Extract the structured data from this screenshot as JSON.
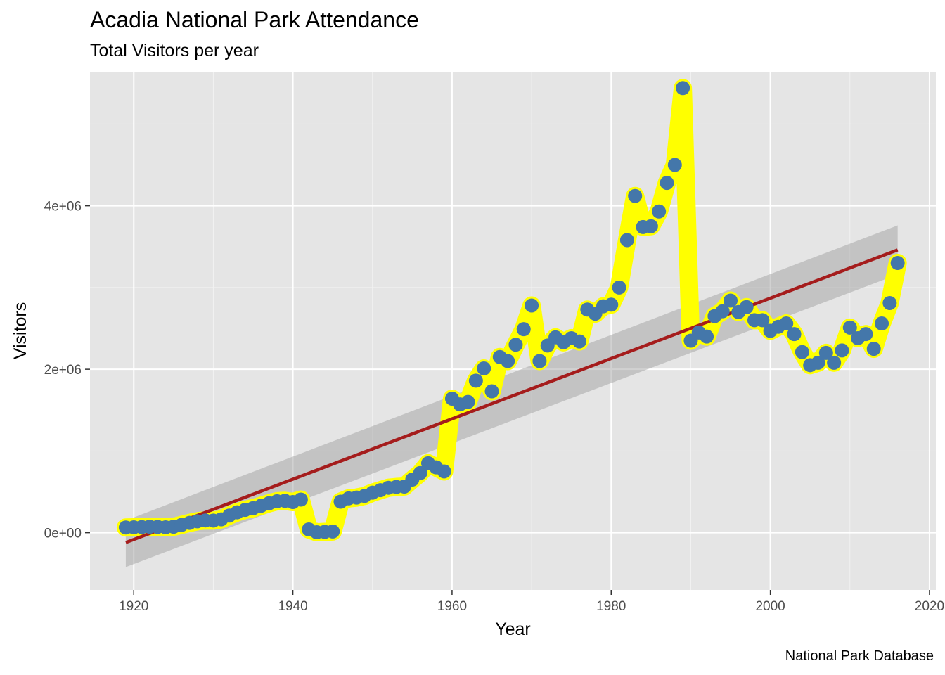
{
  "chart_data": {
    "type": "line",
    "title": "Acadia National Park Attendance",
    "subtitle": "Total Visitors per year",
    "caption": "National Park Database",
    "xlabel": "Year",
    "ylabel": "Visitors",
    "xlim": [
      1914.5,
      2020.8
    ],
    "ylim": [
      -700000,
      5640000
    ],
    "x_ticks": [
      1920,
      1940,
      1960,
      1980,
      2000,
      2020
    ],
    "x_tick_labels": [
      "1920",
      "1940",
      "1960",
      "1980",
      "2000",
      "2020"
    ],
    "y_ticks": [
      0,
      2000000,
      4000000
    ],
    "y_tick_labels": [
      "0e+00",
      "2e+06",
      "4e+06"
    ],
    "grid": true,
    "background": "#e5e5e5",
    "colors": {
      "points": "#4477aa",
      "line": "#ffff00",
      "trend": "#a51c1c",
      "ribbon": "#999999"
    },
    "series": [
      {
        "x": [
          1919,
          1920,
          1921,
          1922,
          1923,
          1924,
          1925,
          1926,
          1927,
          1928,
          1929,
          1930,
          1931,
          1932,
          1933,
          1934,
          1935,
          1936,
          1937,
          1938,
          1939,
          1940,
          1941,
          1942,
          1943,
          1944,
          1945,
          1946,
          1947,
          1948,
          1949,
          1950,
          1951,
          1952,
          1953,
          1954,
          1955,
          1956,
          1957,
          1958,
          1959,
          1960,
          1961,
          1962,
          1963,
          1964,
          1965,
          1966,
          1967,
          1968,
          1969,
          1970,
          1971,
          1972,
          1973,
          1974,
          1975,
          1976,
          1977,
          1978,
          1979,
          1980,
          1981,
          1982,
          1983,
          1984,
          1985,
          1986,
          1987,
          1988,
          1989,
          1990,
          1991,
          1992,
          1993,
          1994,
          1995,
          1996,
          1997,
          1998,
          1999,
          2000,
          2001,
          2002,
          2003,
          2004,
          2005,
          2006,
          2007,
          2008,
          2009,
          2010,
          2011,
          2012,
          2013,
          2014,
          2015,
          2016
        ],
        "y": [
          64000,
          66000,
          69000,
          73000,
          71000,
          66000,
          73000,
          95000,
          120000,
          140000,
          150000,
          148000,
          164000,
          210000,
          250000,
          280000,
          300000,
          330000,
          360000,
          385000,
          390000,
          375000,
          405000,
          40000,
          5000,
          10000,
          15000,
          380000,
          420000,
          430000,
          450000,
          490000,
          520000,
          550000,
          560000,
          565000,
          650000,
          730000,
          850000,
          800000,
          750000,
          1640000,
          1570000,
          1600000,
          1860000,
          2010000,
          1730000,
          2150000,
          2100000,
          2300000,
          2490000,
          2780000,
          2100000,
          2290000,
          2390000,
          2330000,
          2380000,
          2340000,
          2730000,
          2680000,
          2770000,
          2790000,
          3000000,
          3580000,
          4120000,
          3740000,
          3750000,
          3930000,
          4280000,
          4500000,
          5440000,
          2350000,
          2450000,
          2400000,
          2650000,
          2710000,
          2840000,
          2700000,
          2760000,
          2600000,
          2600000,
          2470000,
          2520000,
          2560000,
          2430000,
          2210000,
          2050000,
          2080000,
          2200000,
          2080000,
          2230000,
          2510000,
          2380000,
          2430000,
          2250000,
          2560000,
          2810000,
          3300000
        ]
      }
    ],
    "trend": {
      "x": [
        1919,
        2016
      ],
      "y": [
        -120000,
        3460000
      ],
      "ribbon_lower": [
        -420000,
        3160000
      ],
      "ribbon_upper": [
        150000,
        3760000
      ]
    }
  }
}
